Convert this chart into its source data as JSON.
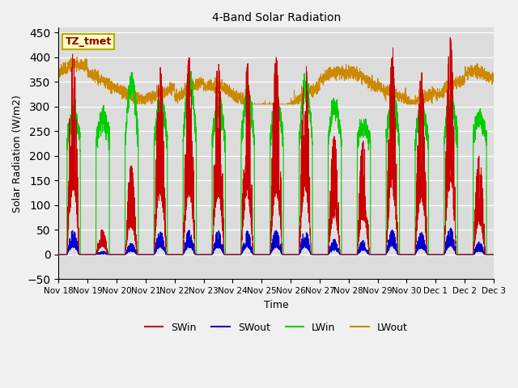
{
  "title": "4-Band Solar Radiation",
  "xlabel": "Time",
  "ylabel": "Solar Radiation (W/m2)",
  "ylim": [
    -50,
    460
  ],
  "yticks": [
    -50,
    0,
    50,
    100,
    150,
    200,
    250,
    300,
    350,
    400,
    450
  ],
  "label_box": "TZ_tmet",
  "legend_entries": [
    "SWin",
    "SWout",
    "LWin",
    "LWout"
  ],
  "legend_colors": [
    "#cc0000",
    "#0000cc",
    "#00cc00",
    "#cc8800"
  ],
  "plot_bg": "#dcdcdc",
  "fig_bg": "#f0f0f0",
  "figsize": [
    6.4,
    4.8
  ],
  "dpi": 100,
  "num_days": 15,
  "pts_per_day": 288
}
